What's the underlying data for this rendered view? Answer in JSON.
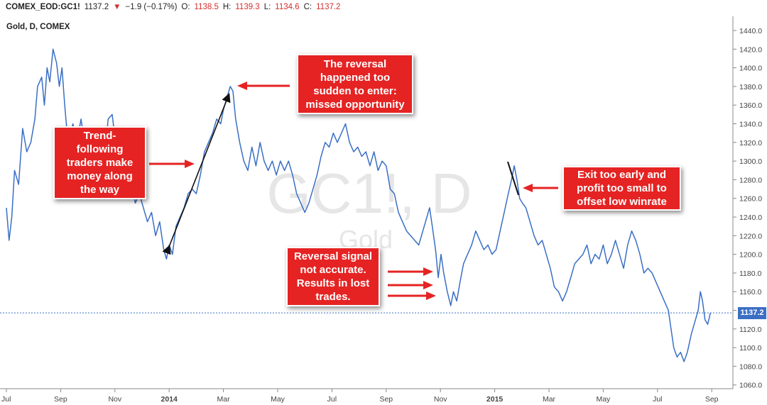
{
  "header": {
    "symbol": "COMEX_EOD:GC1!",
    "last": "1137.2",
    "change_arrow": "▼",
    "change": "−1.9 (−0.17%)",
    "o_label": "O:",
    "o_value": "1138.5",
    "h_label": "H:",
    "h_value": "1139.3",
    "l_label": "L:",
    "l_value": "1134.6",
    "c_label": "C:",
    "c_value": "1137.2"
  },
  "chart_title": "Gold, D, COMEX",
  "watermark": {
    "main": "GC1!, D",
    "sub": "Gold"
  },
  "last_price_tag": "1137.2",
  "callouts": {
    "trend": "Trend-\nfollowing\ntraders make\nmoney along\nthe way",
    "reversal": "The reversal\nhappened too\nsudden to enter:\nmissed opportunity",
    "exit": "Exit too early and\nprofit too small to\noffset low winrate",
    "signal": "Reversal signal\nnot accurate.\nResults in lost\ntrades."
  },
  "colors": {
    "line": "#3a6fc4",
    "callout": "#e52323",
    "arrow": "#e52323",
    "down": "#d32f2f",
    "axis_text": "#444444",
    "grid_line": "#3a6fc4"
  },
  "chart_data": {
    "type": "line",
    "title": "Gold, D, COMEX",
    "xlabel": "",
    "ylabel": "",
    "ylim": [
      1050,
      1450
    ],
    "grid": false,
    "y_ticks": [
      1060,
      1080,
      1100,
      1120,
      1140,
      1160,
      1180,
      1200,
      1220,
      1240,
      1260,
      1280,
      1300,
      1320,
      1340,
      1360,
      1380,
      1400,
      1420,
      1440
    ],
    "x_ticks": [
      {
        "label": "Jul",
        "month": 0,
        "bold": false
      },
      {
        "label": "Sep",
        "month": 2,
        "bold": false
      },
      {
        "label": "Nov",
        "month": 4,
        "bold": false
      },
      {
        "label": "2014",
        "month": 6,
        "bold": true
      },
      {
        "label": "Mar",
        "month": 8,
        "bold": false
      },
      {
        "label": "May",
        "month": 10,
        "bold": false
      },
      {
        "label": "Jul",
        "month": 12,
        "bold": false
      },
      {
        "label": "Sep",
        "month": 14,
        "bold": false
      },
      {
        "label": "Nov",
        "month": 16,
        "bold": false
      },
      {
        "label": "2015",
        "month": 18,
        "bold": true
      },
      {
        "label": "Mar",
        "month": 20,
        "bold": false
      },
      {
        "label": "May",
        "month": 22,
        "bold": false
      },
      {
        "label": "Jul",
        "month": 24,
        "bold": false
      },
      {
        "label": "Sep",
        "month": 26,
        "bold": false
      }
    ],
    "last_value": 1137.2,
    "series": [
      {
        "values": [
          [
            0.0,
            1250
          ],
          [
            0.1,
            1215
          ],
          [
            0.2,
            1240
          ],
          [
            0.3,
            1290
          ],
          [
            0.45,
            1275
          ],
          [
            0.6,
            1335
          ],
          [
            0.75,
            1310
          ],
          [
            0.9,
            1320
          ],
          [
            1.05,
            1345
          ],
          [
            1.15,
            1380
          ],
          [
            1.3,
            1390
          ],
          [
            1.4,
            1360
          ],
          [
            1.5,
            1400
          ],
          [
            1.6,
            1385
          ],
          [
            1.72,
            1420
          ],
          [
            1.85,
            1405
          ],
          [
            1.95,
            1380
          ],
          [
            2.05,
            1400
          ],
          [
            2.15,
            1360
          ],
          [
            2.3,
            1310
          ],
          [
            2.45,
            1340
          ],
          [
            2.6,
            1320
          ],
          [
            2.75,
            1345
          ],
          [
            2.9,
            1315
          ],
          [
            3.05,
            1335
          ],
          [
            3.2,
            1300
          ],
          [
            3.35,
            1315
          ],
          [
            3.5,
            1330
          ],
          [
            3.6,
            1300
          ],
          [
            3.75,
            1345
          ],
          [
            3.9,
            1350
          ],
          [
            4.0,
            1325
          ],
          [
            4.15,
            1310
          ],
          [
            4.3,
            1290
          ],
          [
            4.45,
            1275
          ],
          [
            4.6,
            1280
          ],
          [
            4.75,
            1255
          ],
          [
            4.9,
            1265
          ],
          [
            5.05,
            1250
          ],
          [
            5.2,
            1235
          ],
          [
            5.35,
            1245
          ],
          [
            5.5,
            1220
          ],
          [
            5.65,
            1235
          ],
          [
            5.8,
            1205
          ],
          [
            5.9,
            1195
          ],
          [
            6.0,
            1210
          ],
          [
            6.12,
            1200
          ],
          [
            6.25,
            1230
          ],
          [
            6.4,
            1240
          ],
          [
            6.55,
            1250
          ],
          [
            6.7,
            1265
          ],
          [
            6.85,
            1270
          ],
          [
            7.0,
            1265
          ],
          [
            7.15,
            1285
          ],
          [
            7.3,
            1310
          ],
          [
            7.45,
            1320
          ],
          [
            7.6,
            1330
          ],
          [
            7.75,
            1345
          ],
          [
            7.9,
            1340
          ],
          [
            8.0,
            1355
          ],
          [
            8.1,
            1365
          ],
          [
            8.25,
            1380
          ],
          [
            8.35,
            1375
          ],
          [
            8.45,
            1345
          ],
          [
            8.6,
            1320
          ],
          [
            8.75,
            1300
          ],
          [
            8.9,
            1290
          ],
          [
            9.05,
            1315
          ],
          [
            9.2,
            1295
          ],
          [
            9.35,
            1320
          ],
          [
            9.5,
            1300
          ],
          [
            9.65,
            1290
          ],
          [
            9.8,
            1300
          ],
          [
            9.95,
            1285
          ],
          [
            10.1,
            1300
          ],
          [
            10.25,
            1290
          ],
          [
            10.4,
            1300
          ],
          [
            10.55,
            1285
          ],
          [
            10.7,
            1265
          ],
          [
            10.85,
            1255
          ],
          [
            11.0,
            1245
          ],
          [
            11.15,
            1255
          ],
          [
            11.3,
            1270
          ],
          [
            11.45,
            1285
          ],
          [
            11.6,
            1305
          ],
          [
            11.75,
            1320
          ],
          [
            11.9,
            1315
          ],
          [
            12.05,
            1330
          ],
          [
            12.2,
            1320
          ],
          [
            12.35,
            1330
          ],
          [
            12.5,
            1340
          ],
          [
            12.65,
            1320
          ],
          [
            12.8,
            1310
          ],
          [
            12.95,
            1315
          ],
          [
            13.1,
            1305
          ],
          [
            13.25,
            1310
          ],
          [
            13.4,
            1295
          ],
          [
            13.55,
            1310
          ],
          [
            13.7,
            1290
          ],
          [
            13.85,
            1300
          ],
          [
            14.0,
            1295
          ],
          [
            14.15,
            1270
          ],
          [
            14.3,
            1265
          ],
          [
            14.45,
            1245
          ],
          [
            14.6,
            1235
          ],
          [
            14.75,
            1225
          ],
          [
            14.9,
            1220
          ],
          [
            15.05,
            1215
          ],
          [
            15.2,
            1210
          ],
          [
            15.35,
            1225
          ],
          [
            15.5,
            1240
          ],
          [
            15.6,
            1250
          ],
          [
            15.7,
            1230
          ],
          [
            15.82,
            1205
          ],
          [
            15.92,
            1175
          ],
          [
            16.02,
            1200
          ],
          [
            16.12,
            1180
          ],
          [
            16.25,
            1160
          ],
          [
            16.38,
            1145
          ],
          [
            16.48,
            1160
          ],
          [
            16.6,
            1150
          ],
          [
            16.72,
            1170
          ],
          [
            16.85,
            1190
          ],
          [
            17.0,
            1200
          ],
          [
            17.15,
            1210
          ],
          [
            17.3,
            1225
          ],
          [
            17.45,
            1215
          ],
          [
            17.6,
            1205
          ],
          [
            17.75,
            1210
          ],
          [
            17.9,
            1200
          ],
          [
            18.05,
            1205
          ],
          [
            18.2,
            1225
          ],
          [
            18.35,
            1245
          ],
          [
            18.5,
            1265
          ],
          [
            18.62,
            1280
          ],
          [
            18.72,
            1295
          ],
          [
            18.82,
            1280
          ],
          [
            18.92,
            1260
          ],
          [
            19.02,
            1255
          ],
          [
            19.15,
            1250
          ],
          [
            19.3,
            1235
          ],
          [
            19.45,
            1220
          ],
          [
            19.6,
            1210
          ],
          [
            19.75,
            1215
          ],
          [
            19.9,
            1200
          ],
          [
            20.05,
            1185
          ],
          [
            20.2,
            1165
          ],
          [
            20.35,
            1160
          ],
          [
            20.5,
            1150
          ],
          [
            20.65,
            1160
          ],
          [
            20.8,
            1175
          ],
          [
            20.95,
            1190
          ],
          [
            21.1,
            1195
          ],
          [
            21.25,
            1200
          ],
          [
            21.4,
            1210
          ],
          [
            21.55,
            1190
          ],
          [
            21.7,
            1200
          ],
          [
            21.85,
            1195
          ],
          [
            22.0,
            1210
          ],
          [
            22.15,
            1190
          ],
          [
            22.3,
            1200
          ],
          [
            22.45,
            1215
          ],
          [
            22.6,
            1200
          ],
          [
            22.75,
            1185
          ],
          [
            22.9,
            1210
          ],
          [
            23.05,
            1225
          ],
          [
            23.2,
            1215
          ],
          [
            23.35,
            1200
          ],
          [
            23.5,
            1180
          ],
          [
            23.65,
            1185
          ],
          [
            23.8,
            1180
          ],
          [
            23.95,
            1170
          ],
          [
            24.1,
            1160
          ],
          [
            24.25,
            1150
          ],
          [
            24.4,
            1140
          ],
          [
            24.5,
            1120
          ],
          [
            24.6,
            1100
          ],
          [
            24.72,
            1090
          ],
          [
            24.85,
            1095
          ],
          [
            24.98,
            1085
          ],
          [
            25.1,
            1095
          ],
          [
            25.25,
            1115
          ],
          [
            25.4,
            1130
          ],
          [
            25.5,
            1140
          ],
          [
            25.58,
            1160
          ],
          [
            25.66,
            1150
          ],
          [
            25.75,
            1130
          ],
          [
            25.85,
            1125
          ],
          [
            25.95,
            1137.2
          ]
        ]
      }
    ]
  }
}
